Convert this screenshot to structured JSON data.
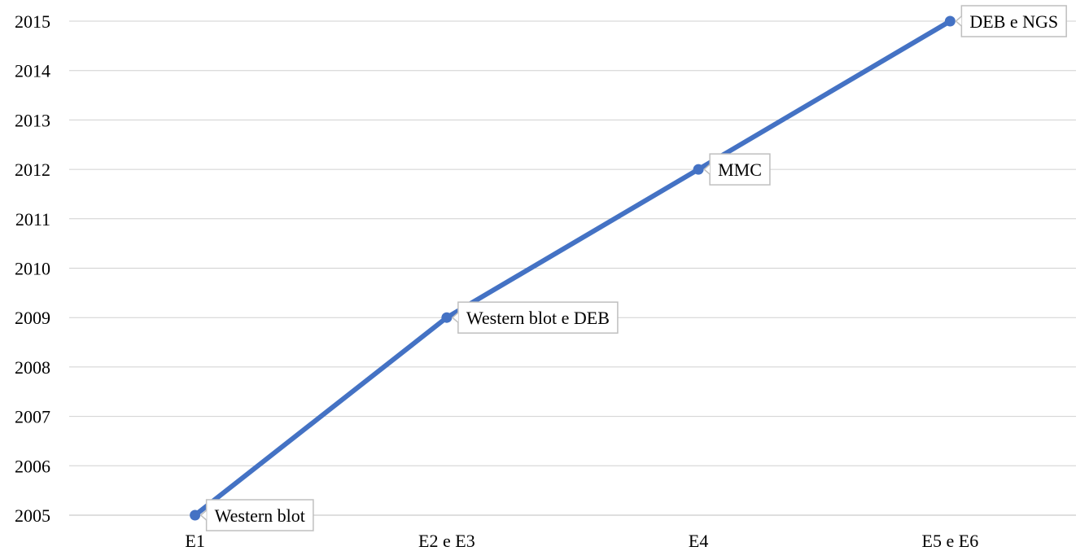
{
  "chart_data": {
    "type": "line",
    "categories": [
      "E1",
      "E2 e E3",
      "E4",
      "E5 e E6"
    ],
    "series": [
      {
        "values": [
          2005,
          2009,
          2012,
          2015
        ],
        "color": "#4472C4",
        "data_labels": [
          "Western blot",
          "Western blot e DEB",
          "MMC",
          "DEB e NGS"
        ]
      }
    ],
    "y_ticks": [
      "2005",
      "2006",
      "2007",
      "2008",
      "2009",
      "2010",
      "2011",
      "2012",
      "2013",
      "2014",
      "2015"
    ],
    "ylim": [
      2005,
      2015
    ],
    "title": "",
    "xlabel": "",
    "ylabel": "",
    "grid": true,
    "legend": "none"
  }
}
